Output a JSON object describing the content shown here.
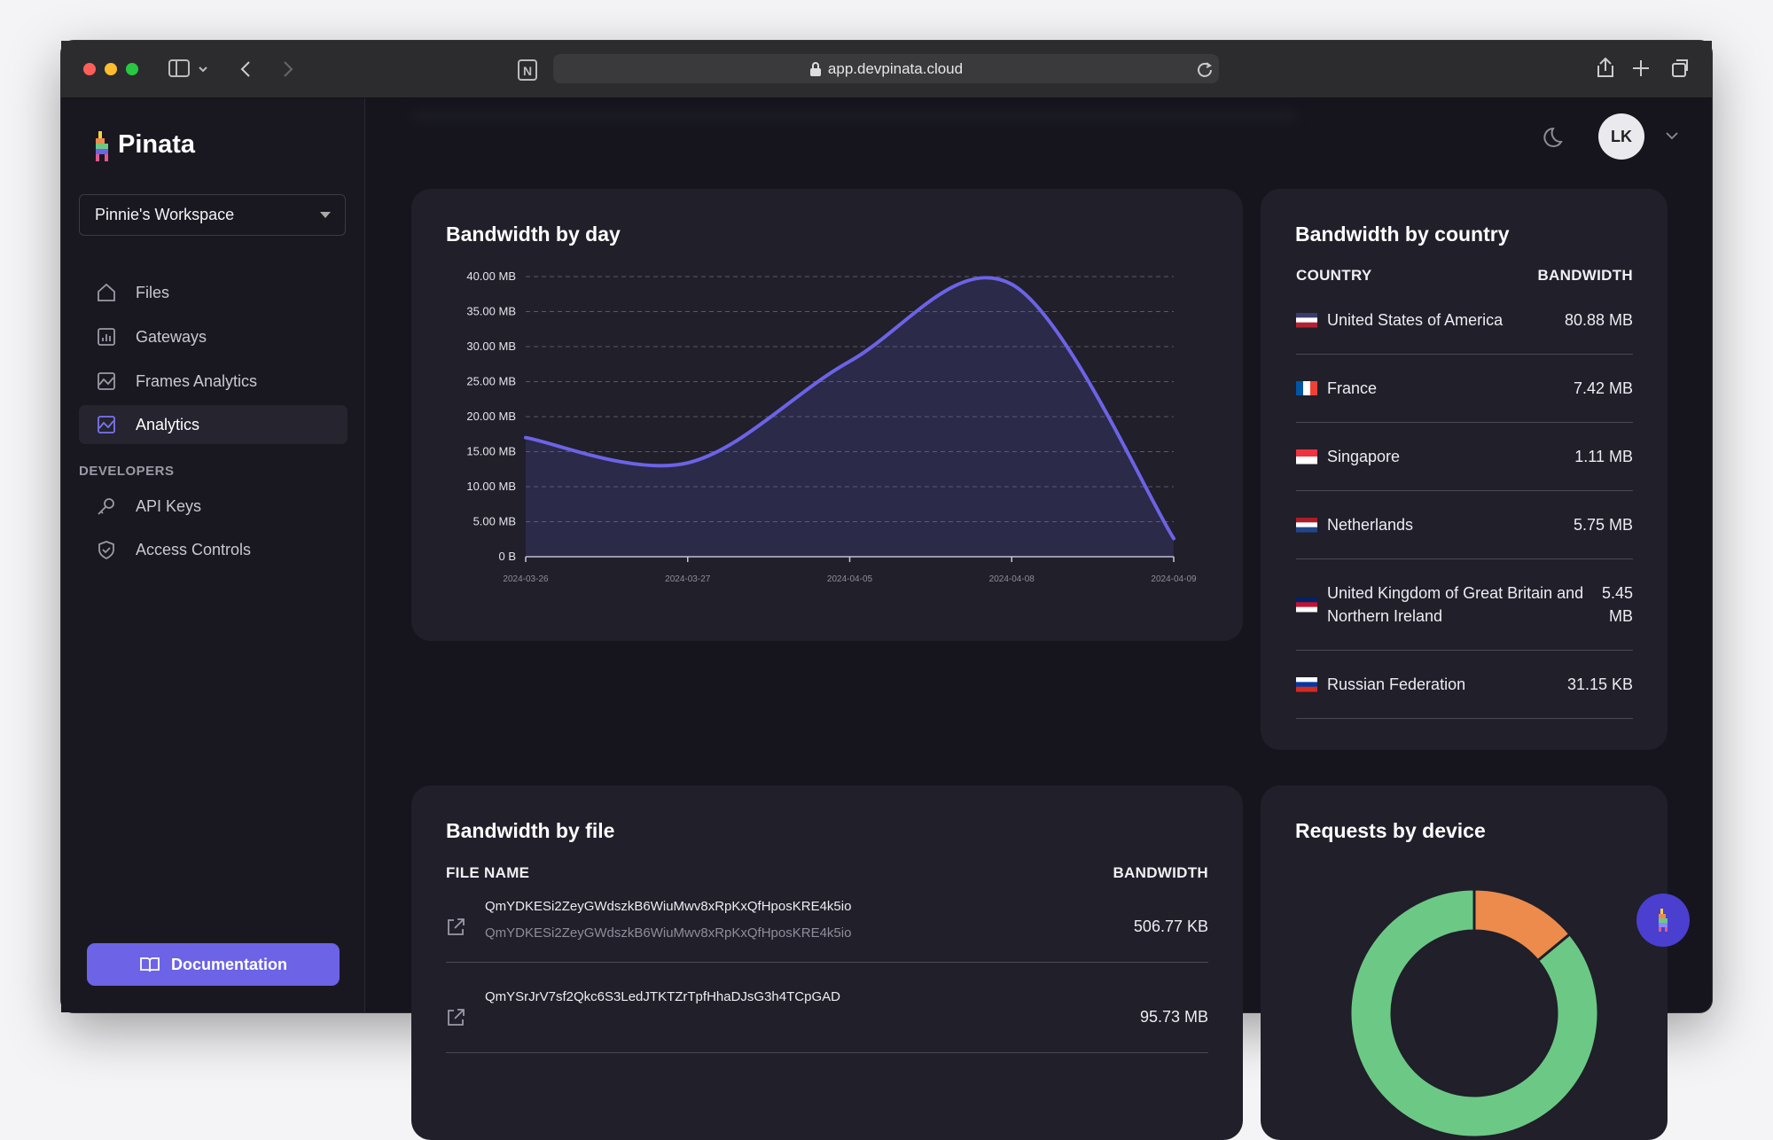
{
  "browser": {
    "url": "app.devpinata.cloud"
  },
  "sidebar": {
    "logo": "Pinata",
    "workspace": "Pinnie's Workspace",
    "nav": [
      "Files",
      "Gateways",
      "Frames Analytics",
      "Analytics"
    ],
    "section": "DEVELOPERS",
    "dev_nav": [
      "API Keys",
      "Access Controls"
    ],
    "docs_button": "Documentation"
  },
  "header": {
    "avatar": "LK"
  },
  "chart_data": [
    {
      "type": "line",
      "title": "Bandwidth by day",
      "categories": [
        "2024-03-26",
        "2024-03-27",
        "2024-04-05",
        "2024-04-08",
        "2024-04-09"
      ],
      "values": [
        17,
        13.4,
        27.9,
        38.9,
        2.6
      ],
      "color": "#6c63e6",
      "ylim": [
        0,
        40
      ],
      "yticks": [
        {
          "value": 0,
          "label": "0 B"
        },
        {
          "value": 5,
          "label": "5.00 MB"
        },
        {
          "value": 10,
          "label": "10.00 MB"
        },
        {
          "value": 15,
          "label": "15.00 MB"
        },
        {
          "value": 20,
          "label": "20.00 MB"
        },
        {
          "value": 25,
          "label": "25.00 MB"
        },
        {
          "value": 30,
          "label": "30.00 MB"
        },
        {
          "value": 35,
          "label": "35.00 MB"
        },
        {
          "value": 40,
          "label": "40.00 MB"
        }
      ],
      "grid": true
    },
    {
      "type": "pie",
      "title": "Requests by device",
      "values": [
        14,
        86
      ],
      "colors": [
        "#ec8b4c",
        "#6cc985"
      ]
    }
  ],
  "bandwidth_by_country": {
    "title": "Bandwidth by country",
    "columns": [
      "COUNTRY",
      "BANDWIDTH"
    ],
    "rows": [
      [
        "United States of America",
        "80.88 MB"
      ],
      [
        "France",
        "7.42 MB"
      ],
      [
        "Singapore",
        "1.11 MB"
      ],
      [
        "Netherlands",
        "5.75 MB"
      ],
      [
        "United Kingdom of Great Britain and Northern Ireland",
        "5.45 MB"
      ],
      [
        "Russian Federation",
        "31.15 KB"
      ]
    ]
  },
  "bandwidth_by_file": {
    "title": "Bandwidth by file",
    "columns": [
      "FILE NAME",
      "BANDWIDTH"
    ],
    "rows": [
      {
        "name": "QmYDKESi2ZeyGWdszkB6WiuMwv8xRpKxQfHposKRE4k5io",
        "subtitle": "QmYDKESi2ZeyGWdszkB6WiuMwv8xRpKxQfHposKRE4k5io",
        "bandwidth": "506.77 KB"
      },
      {
        "name": "QmYSrJrV7sf2Qkc6S3LedJTKTZrTpfHhaDJsG3h4TCpGAD",
        "bandwidth": "95.73 MB"
      }
    ]
  }
}
